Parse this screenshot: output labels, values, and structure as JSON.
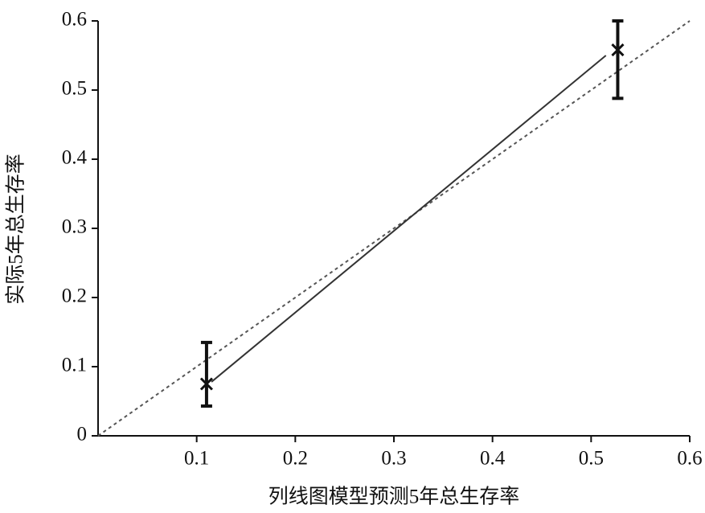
{
  "chart_data": {
    "type": "calibration",
    "x_label": "列线图模型预测5年总生存率",
    "y_label": "实际5年总生存率",
    "xlim": [
      0,
      0.6
    ],
    "ylim": [
      0,
      0.6
    ],
    "xticks": [
      0.1,
      0.2,
      0.3,
      0.4,
      0.5,
      0.6
    ],
    "yticks": [
      0,
      0.1,
      0.2,
      0.3,
      0.4,
      0.5,
      0.6
    ],
    "points": {
      "x": [
        0.11,
        0.527
      ],
      "values": [
        0.075,
        0.558
      ],
      "lower": [
        0.043,
        0.488
      ],
      "upper": [
        0.135,
        0.6
      ],
      "color": "#111111"
    },
    "calibration_line": {
      "x": [
        0.115,
        0.515
      ],
      "values": [
        0.078,
        0.55
      ],
      "color": "#333333"
    },
    "reference_line": {
      "x": [
        0,
        0.6
      ],
      "values": [
        0,
        0.6
      ],
      "color": "#555555"
    }
  }
}
